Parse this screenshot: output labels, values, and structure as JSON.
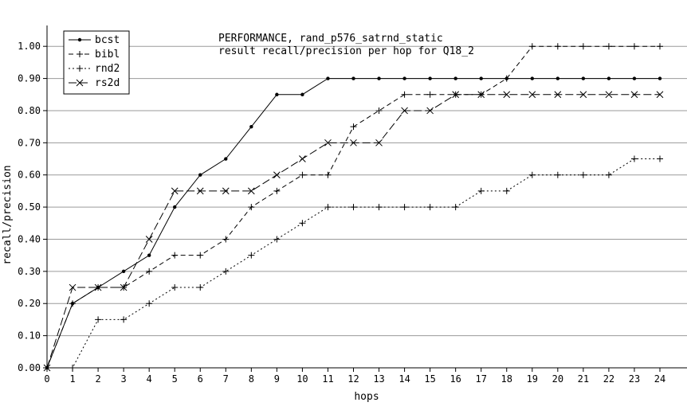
{
  "chart_data": {
    "type": "line",
    "title": "PERFORMANCE, rand_p576_satrnd_static",
    "subtitle": "result recall/precision per hop for Q18_2",
    "xlabel": "hops",
    "ylabel": "recall/precision",
    "xlim": [
      0,
      24
    ],
    "ylim": [
      0,
      1.05
    ],
    "x": [
      0,
      1,
      2,
      3,
      4,
      5,
      6,
      7,
      8,
      9,
      10,
      11,
      12,
      13,
      14,
      15,
      16,
      17,
      18,
      19,
      20,
      21,
      22,
      23,
      24
    ],
    "xticks": [
      "0",
      "1",
      "2",
      "3",
      "4",
      "5",
      "6",
      "7",
      "8",
      "9",
      "10",
      "11",
      "12",
      "13",
      "14",
      "15",
      "16",
      "17",
      "18",
      "19",
      "20",
      "21",
      "22",
      "23",
      "24"
    ],
    "yticks": [
      {
        "v": 0.0,
        "label": "0.00"
      },
      {
        "v": 0.1,
        "label": "0.10"
      },
      {
        "v": 0.2,
        "label": "0.20"
      },
      {
        "v": 0.3,
        "label": "0.30"
      },
      {
        "v": 0.4,
        "label": "0.40"
      },
      {
        "v": 0.5,
        "label": "0.50"
      },
      {
        "v": 0.6,
        "label": "0.60"
      },
      {
        "v": 0.7,
        "label": "0.70"
      },
      {
        "v": 0.8,
        "label": "0.80"
      },
      {
        "v": 0.9,
        "label": "0.90"
      },
      {
        "v": 1.0,
        "label": "1.00"
      }
    ],
    "grid": "horizontal",
    "legend_position": "top-left",
    "series": [
      {
        "name": "bcst",
        "dash": "",
        "marker": "dot",
        "values": [
          0,
          0.2,
          0.25,
          0.3,
          0.35,
          0.5,
          0.6,
          0.65,
          0.75,
          0.85,
          0.85,
          0.9,
          0.9,
          0.9,
          0.9,
          0.9,
          0.9,
          0.9,
          0.9,
          0.9,
          0.9,
          0.9,
          0.9,
          0.9,
          0.9
        ]
      },
      {
        "name": "bibl",
        "dash": "6 4",
        "marker": "plus",
        "values": [
          0,
          0.2,
          0.25,
          0.25,
          0.3,
          0.35,
          0.35,
          0.4,
          0.5,
          0.55,
          0.6,
          0.6,
          0.75,
          0.8,
          0.85,
          0.85,
          0.85,
          0.85,
          0.9,
          1.0,
          1.0,
          1.0,
          1.0,
          1.0,
          1.0
        ]
      },
      {
        "name": "rnd2",
        "dash": "2 3",
        "marker": "plus",
        "values": [
          0,
          0,
          0.15,
          0.15,
          0.2,
          0.25,
          0.25,
          0.3,
          0.35,
          0.4,
          0.45,
          0.5,
          0.5,
          0.5,
          0.5,
          0.5,
          0.5,
          0.55,
          0.55,
          0.6,
          0.6,
          0.6,
          0.6,
          0.65,
          0.65
        ]
      },
      {
        "name": "rs2d",
        "dash": "10 4",
        "marker": "x",
        "values": [
          0,
          0.25,
          0.25,
          0.25,
          0.4,
          0.55,
          0.55,
          0.55,
          0.55,
          0.6,
          0.65,
          0.7,
          0.7,
          0.7,
          0.8,
          0.8,
          0.85,
          0.85,
          0.85,
          0.85,
          0.85,
          0.85,
          0.85,
          0.85,
          0.85
        ]
      }
    ],
    "colors": {
      "line": "#000000",
      "grid": "#9a9a9a",
      "background": "#ffffff"
    }
  }
}
